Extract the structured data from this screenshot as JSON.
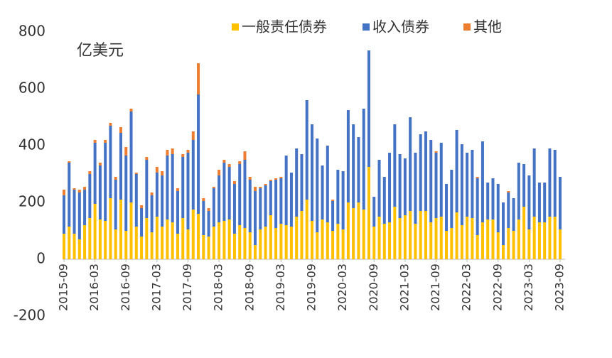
{
  "chart_data": {
    "type": "stacked_bar",
    "annotation": "亿美元",
    "categories": [
      "2015-09",
      null,
      null,
      null,
      null,
      null,
      "2016-03",
      null,
      null,
      null,
      null,
      null,
      "2016-09",
      null,
      null,
      null,
      null,
      null,
      "2017-03",
      null,
      null,
      null,
      null,
      null,
      "2017-09",
      null,
      null,
      null,
      null,
      null,
      "2018-03",
      null,
      null,
      null,
      null,
      null,
      "2018-09",
      null,
      null,
      null,
      null,
      null,
      "2019-03",
      null,
      null,
      null,
      null,
      null,
      "2019-09",
      null,
      null,
      null,
      null,
      null,
      "2020-03",
      null,
      null,
      null,
      null,
      null,
      "2020-09",
      null,
      null,
      null,
      null,
      null,
      "2021-03",
      null,
      null,
      null,
      null,
      null,
      "2021-09",
      null,
      null,
      null,
      null,
      null,
      "2022-03",
      null,
      null,
      null,
      null,
      null,
      "2022-09",
      null,
      null,
      null,
      null,
      null,
      "2023-03",
      null,
      null,
      null,
      null,
      null,
      "2023-09"
    ],
    "series": [
      {
        "name": "一般责任债券",
        "color": "#FFC000",
        "values": [
          90,
          115,
          90,
          70,
          120,
          145,
          195,
          140,
          135,
          215,
          105,
          210,
          100,
          200,
          115,
          80,
          145,
          95,
          150,
          115,
          140,
          130,
          90,
          145,
          105,
          175,
          160,
          85,
          80,
          115,
          130,
          135,
          140,
          90,
          120,
          110,
          95,
          50,
          105,
          115,
          155,
          110,
          125,
          120,
          115,
          150,
          170,
          210,
          135,
          95,
          140,
          130,
          100,
          125,
          105,
          200,
          180,
          200,
          175,
          325,
          115,
          150,
          125,
          130,
          185,
          145,
          155,
          170,
          125,
          170,
          170,
          130,
          145,
          150,
          100,
          110,
          165,
          120,
          150,
          145,
          85,
          130,
          140,
          140,
          95,
          50,
          110,
          100,
          140,
          185,
          105,
          150,
          130,
          130,
          150,
          150,
          105
        ]
      },
      {
        "name": "收入债券",
        "color": "#4472C4",
        "values": [
          135,
          225,
          155,
          165,
          125,
          155,
          215,
          190,
          275,
          255,
          175,
          235,
          265,
          320,
          185,
          100,
          205,
          130,
          155,
          180,
          225,
          240,
          150,
          215,
          270,
          245,
          420,
          120,
          90,
          135,
          165,
          205,
          185,
          175,
          215,
          240,
          185,
          190,
          145,
          145,
          120,
          170,
          160,
          245,
          190,
          240,
          200,
          350,
          340,
          330,
          190,
          270,
          105,
          190,
          205,
          325,
          295,
          230,
          355,
          410,
          105,
          200,
          165,
          245,
          290,
          225,
          200,
          330,
          250,
          270,
          280,
          290,
          230,
          260,
          165,
          205,
          290,
          285,
          225,
          240,
          200,
          285,
          130,
          145,
          170,
          150,
          125,
          115,
          200,
          150,
          190,
          240,
          140,
          140,
          240,
          235,
          185
        ]
      },
      {
        "name": "其他",
        "color": "#ED7D31",
        "values": [
          20,
          5,
          5,
          10,
          10,
          10,
          10,
          10,
          10,
          10,
          10,
          20,
          30,
          10,
          5,
          10,
          10,
          10,
          20,
          15,
          20,
          20,
          10,
          10,
          10,
          30,
          110,
          10,
          10,
          5,
          20,
          10,
          10,
          10,
          10,
          30,
          10,
          15,
          5,
          5,
          5,
          5,
          5,
          0,
          0,
          0,
          0,
          0,
          0,
          0,
          0,
          0,
          5,
          0,
          0,
          0,
          0,
          0,
          0,
          0,
          0,
          0,
          0,
          0,
          0,
          0,
          0,
          0,
          0,
          0,
          0,
          0,
          5,
          0,
          0,
          0,
          0,
          0,
          0,
          0,
          5,
          0,
          0,
          0,
          0,
          0,
          5,
          0,
          0,
          0,
          0,
          0,
          0,
          0,
          0,
          0,
          0
        ]
      }
    ],
    "ylim": [
      -200,
      800
    ],
    "yticks": [
      -200,
      0,
      200,
      400,
      600,
      800
    ],
    "legend": "top"
  }
}
